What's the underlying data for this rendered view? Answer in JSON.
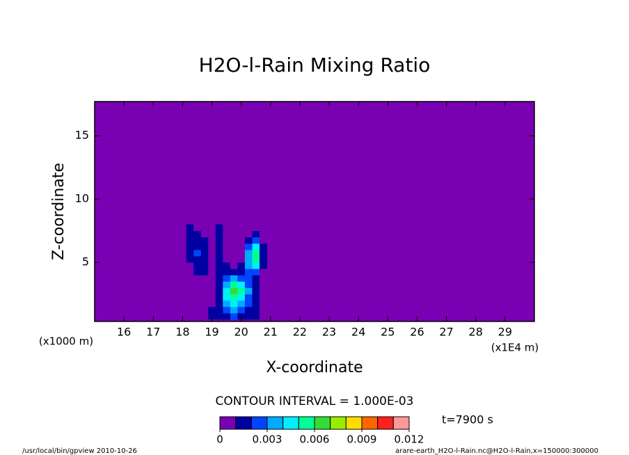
{
  "chart_data": {
    "type": "contour",
    "title": "H2O-l-Rain Mixing Ratio",
    "xlabel": "X-coordinate",
    "ylabel": "Z-coordinate",
    "x_unit": "(x1E4 m)",
    "y_unit": "(x1000 m)",
    "xlim": [
      15,
      30
    ],
    "ylim": [
      0.33,
      17.7
    ],
    "xticks": [
      16,
      17,
      18,
      19,
      20,
      21,
      22,
      23,
      24,
      25,
      26,
      27,
      28,
      29
    ],
    "yticks": [
      5,
      10,
      15
    ],
    "x": [
      18.25,
      18.5,
      18.75,
      19,
      19.25,
      19.5,
      19.75,
      20,
      20.25,
      20.5,
      20.75
    ],
    "y": [
      0.75,
      1.25,
      1.75,
      2.25,
      2.75,
      3.25,
      3.75,
      4.25,
      4.75,
      5.25,
      5.75,
      6.25,
      6.75,
      7.25,
      7.75
    ],
    "z": [
      [
        0,
        0,
        0,
        0.0012,
        0.0015,
        0.0018,
        0.002,
        0.0018,
        0.0015,
        0.0012,
        0
      ],
      [
        0,
        0,
        0,
        0.0011,
        0.0016,
        0.0025,
        0.003,
        0.0025,
        0.0018,
        0.0011,
        0
      ],
      [
        0,
        0,
        0,
        0,
        0.0015,
        0.0035,
        0.0045,
        0.0035,
        0.002,
        0.0012,
        0
      ],
      [
        0,
        0,
        0,
        0,
        0.0014,
        0.004,
        0.0055,
        0.0045,
        0.0025,
        0.0012,
        0
      ],
      [
        0,
        0,
        0,
        0,
        0.0013,
        0.0045,
        0.0062,
        0.005,
        0.003,
        0.0014,
        0
      ],
      [
        0,
        0,
        0,
        0,
        0.0012,
        0.0035,
        0.005,
        0.004,
        0.0025,
        0.0015,
        0
      ],
      [
        0,
        0,
        0,
        0,
        0.0011,
        0.0022,
        0.003,
        0.0025,
        0.002,
        0.0018,
        0
      ],
      [
        0,
        0.0011,
        0.0012,
        0,
        0.0012,
        0.0015,
        0.0018,
        0.0015,
        0.002,
        0.0025,
        0
      ],
      [
        0,
        0.0015,
        0.0013,
        0,
        0.0013,
        0.0012,
        0,
        0.0012,
        0.003,
        0.004,
        0.0011
      ],
      [
        0.0011,
        0.0018,
        0.0014,
        0,
        0.0014,
        0,
        0,
        0,
        0.0035,
        0.0055,
        0.0012
      ],
      [
        0.0012,
        0.002,
        0.0013,
        0,
        0.0013,
        0,
        0,
        0,
        0.003,
        0.0058,
        0.0012
      ],
      [
        0.0011,
        0.0018,
        0.0012,
        0,
        0.0012,
        0,
        0,
        0,
        0.0022,
        0.004,
        0.0011
      ],
      [
        0.0012,
        0.0015,
        0.0011,
        0,
        0.0013,
        0,
        0,
        0,
        0.0013,
        0.0022,
        0
      ],
      [
        0.0011,
        0.0012,
        0,
        0,
        0.0012,
        0,
        0,
        0,
        0,
        0.0012,
        0
      ],
      [
        0.0011,
        0,
        0,
        0,
        0.0011,
        0,
        0,
        0,
        0,
        0,
        0
      ]
    ],
    "levels": [
      0,
      0.001,
      0.002,
      0.003,
      0.004,
      0.005,
      0.006,
      0.007,
      0.008,
      0.009,
      0.01,
      0.011,
      0.012
    ],
    "colors": [
      "#7a00b3",
      "#0000a0",
      "#0044ff",
      "#00aaff",
      "#00eeff",
      "#00ff99",
      "#33dd33",
      "#99ee00",
      "#ffdd00",
      "#ff6600",
      "#ff2020",
      "#ff9999"
    ],
    "colorbar_ticks": [
      0,
      0.003,
      0.006,
      0.009,
      0.012
    ],
    "contour_interval": "CONTOUR INTERVAL = 1.000E-03",
    "time_label": "t=7900 s",
    "footer_left": "/usr/local/bin/gpview  2010-10-26",
    "footer_right": "arare-earth_H2O-l-Rain.nc@H2O-l-Rain,x=150000:300000"
  }
}
